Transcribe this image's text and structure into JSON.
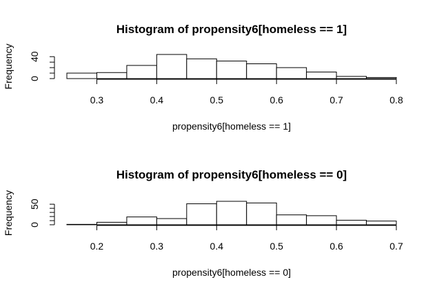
{
  "chart_data": [
    {
      "type": "bar",
      "title": "Histogram of propensity6[homeless == 1]",
      "xlabel": "propensity6[homeless == 1]",
      "ylabel": "Frequency",
      "bin_edges": [
        0.25,
        0.3,
        0.35,
        0.4,
        0.45,
        0.5,
        0.55,
        0.6,
        0.65,
        0.7,
        0.75,
        0.8
      ],
      "values": [
        10,
        11,
        24,
        44,
        36,
        32,
        27,
        20,
        12,
        4,
        2
      ],
      "xticks": [
        "0.3",
        "0.4",
        "0.5",
        "0.6",
        "0.7",
        "0.8"
      ],
      "xtick_values": [
        0.3,
        0.4,
        0.5,
        0.6,
        0.7,
        0.8
      ],
      "yticks": [
        "0",
        "40"
      ],
      "ytick_values": [
        0,
        40
      ],
      "yminor": [
        10,
        20,
        30,
        40
      ],
      "xlim": [
        0.25,
        0.8
      ],
      "ylim": [
        0,
        44
      ]
    },
    {
      "type": "bar",
      "title": "Histogram of propensity6[homeless == 0]",
      "xlabel": "propensity6[homeless == 0]",
      "ylabel": "Frequency",
      "bin_edges": [
        0.15,
        0.2,
        0.25,
        0.3,
        0.35,
        0.4,
        0.45,
        0.5,
        0.55,
        0.6,
        0.65,
        0.7
      ],
      "values": [
        1,
        6,
        19,
        15,
        51,
        57,
        53,
        24,
        22,
        11,
        9
      ],
      "xticks": [
        "0.2",
        "0.3",
        "0.4",
        "0.5",
        "0.6",
        "0.7"
      ],
      "xtick_values": [
        0.2,
        0.3,
        0.4,
        0.5,
        0.6,
        0.7
      ],
      "yticks": [
        "0",
        "50"
      ],
      "ytick_values": [
        0,
        50
      ],
      "yminor": [
        10,
        20,
        30,
        40,
        50
      ],
      "xlim": [
        0.15,
        0.7
      ],
      "ylim": [
        0,
        57
      ]
    }
  ]
}
